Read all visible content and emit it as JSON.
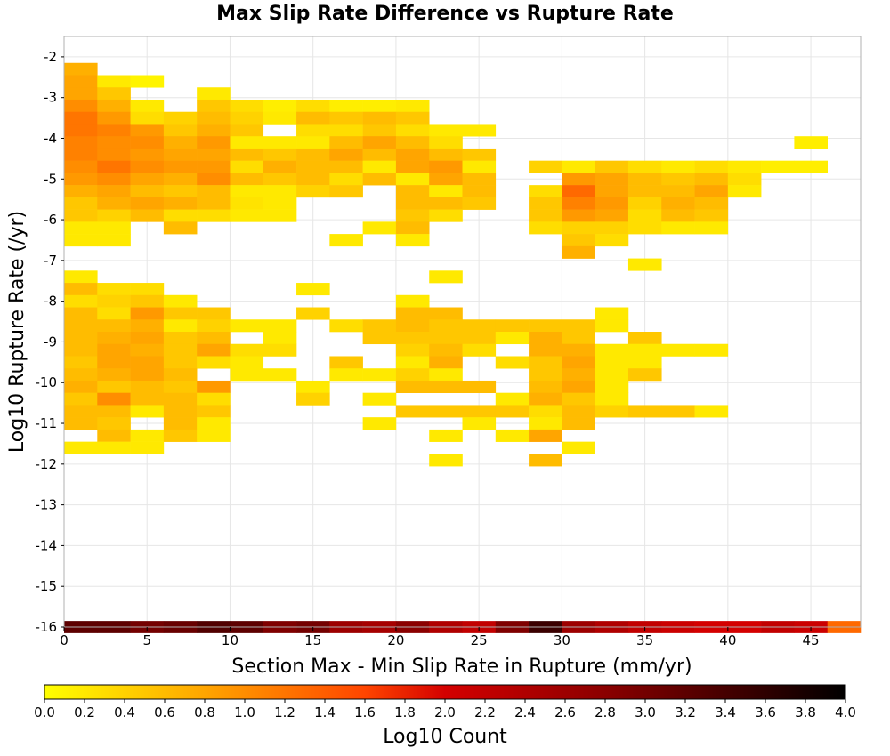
{
  "chart_data": {
    "type": "heatmap",
    "title": "Max Slip Rate Difference vs Rupture Rate",
    "xlabel": "Section Max - Min Slip Rate in Rupture (mm/yr)",
    "ylabel": "Log10 Rupture Rate (/yr)",
    "xlim": [
      0,
      48
    ],
    "ylim": [
      -16,
      -1.5
    ],
    "xticks": [
      0,
      5,
      10,
      15,
      20,
      25,
      30,
      35,
      40,
      45
    ],
    "yticks": [
      -2,
      -3,
      -4,
      -5,
      -6,
      -7,
      -8,
      -9,
      -10,
      -11,
      -12,
      -13,
      -14,
      -15,
      -16
    ],
    "x_bin_width": 2,
    "y_bin_height": 0.3,
    "grid": true,
    "colorbar": {
      "label": "Log10 Count",
      "range": [
        0.0,
        4.0
      ],
      "ticks": [
        "0.0",
        "0.2",
        "0.4",
        "0.6",
        "0.8",
        "1.0",
        "1.2",
        "1.4",
        "1.6",
        "1.8",
        "2.0",
        "2.2",
        "2.4",
        "2.6",
        "2.8",
        "3.0",
        "3.2",
        "3.4",
        "3.6",
        "3.8",
        "4.0"
      ],
      "colors": [
        "#ffff00",
        "#ffa500",
        "#ff4500",
        "#d40000",
        "#8b0000",
        "#000000"
      ]
    },
    "cells": [
      [
        0,
        -2.3,
        0.7
      ],
      [
        0,
        -2.6,
        0.8
      ],
      [
        2,
        -2.6,
        0.2
      ],
      [
        4,
        -2.6,
        0.1
      ],
      [
        0,
        -2.9,
        0.8
      ],
      [
        2,
        -2.9,
        0.5
      ],
      [
        8,
        -2.9,
        0.2
      ],
      [
        0,
        -3.2,
        1.0
      ],
      [
        2,
        -3.2,
        0.7
      ],
      [
        4,
        -3.2,
        0.2
      ],
      [
        8,
        -3.2,
        0.5
      ],
      [
        10,
        -3.2,
        0.3
      ],
      [
        12,
        -3.2,
        0.15
      ],
      [
        14,
        -3.2,
        0.3
      ],
      [
        16,
        -3.2,
        0.15
      ],
      [
        18,
        -3.2,
        0.15
      ],
      [
        20,
        -3.2,
        0.2
      ],
      [
        0,
        -3.5,
        1.2
      ],
      [
        2,
        -3.5,
        0.9
      ],
      [
        4,
        -3.5,
        0.3
      ],
      [
        6,
        -3.5,
        0.4
      ],
      [
        8,
        -3.5,
        0.6
      ],
      [
        10,
        -3.5,
        0.4
      ],
      [
        12,
        -3.5,
        0.2
      ],
      [
        14,
        -3.5,
        0.6
      ],
      [
        16,
        -3.5,
        0.5
      ],
      [
        18,
        -3.5,
        0.6
      ],
      [
        20,
        -3.5,
        0.5
      ],
      [
        0,
        -3.8,
        1.2
      ],
      [
        2,
        -3.8,
        1.1
      ],
      [
        4,
        -3.8,
        0.9
      ],
      [
        6,
        -3.8,
        0.5
      ],
      [
        8,
        -3.8,
        0.7
      ],
      [
        10,
        -3.8,
        0.5
      ],
      [
        14,
        -3.8,
        0.3
      ],
      [
        16,
        -3.8,
        0.3
      ],
      [
        18,
        -3.8,
        0.5
      ],
      [
        20,
        -3.8,
        0.3
      ],
      [
        22,
        -3.8,
        0.2
      ],
      [
        24,
        -3.8,
        0.2
      ],
      [
        0,
        -4.1,
        1.1
      ],
      [
        2,
        -4.1,
        1.0
      ],
      [
        4,
        -4.1,
        1.0
      ],
      [
        6,
        -4.1,
        0.7
      ],
      [
        8,
        -4.1,
        0.9
      ],
      [
        10,
        -4.1,
        0.2
      ],
      [
        12,
        -4.1,
        0.2
      ],
      [
        14,
        -4.1,
        0.2
      ],
      [
        16,
        -4.1,
        0.6
      ],
      [
        18,
        -4.1,
        0.8
      ],
      [
        20,
        -4.1,
        0.6
      ],
      [
        22,
        -4.1,
        0.3
      ],
      [
        44,
        -4.1,
        0.15
      ],
      [
        0,
        -4.4,
        1.1
      ],
      [
        2,
        -4.4,
        1.0
      ],
      [
        4,
        -4.4,
        0.9
      ],
      [
        6,
        -4.4,
        0.8
      ],
      [
        8,
        -4.4,
        0.8
      ],
      [
        10,
        -4.4,
        0.6
      ],
      [
        12,
        -4.4,
        0.5
      ],
      [
        14,
        -4.4,
        0.6
      ],
      [
        16,
        -4.4,
        0.8
      ],
      [
        18,
        -4.4,
        0.6
      ],
      [
        20,
        -4.4,
        0.8
      ],
      [
        22,
        -4.4,
        0.6
      ],
      [
        24,
        -4.4,
        0.5
      ],
      [
        0,
        -4.7,
        1.0
      ],
      [
        2,
        -4.7,
        1.2
      ],
      [
        4,
        -4.7,
        1.0
      ],
      [
        6,
        -4.7,
        0.9
      ],
      [
        8,
        -4.7,
        0.9
      ],
      [
        10,
        -4.7,
        0.3
      ],
      [
        12,
        -4.7,
        0.7
      ],
      [
        14,
        -4.7,
        0.6
      ],
      [
        16,
        -4.7,
        0.6
      ],
      [
        18,
        -4.7,
        0.2
      ],
      [
        20,
        -4.7,
        0.8
      ],
      [
        22,
        -4.7,
        0.9
      ],
      [
        24,
        -4.7,
        0.2
      ],
      [
        28,
        -4.7,
        0.4
      ],
      [
        30,
        -4.7,
        0.2
      ],
      [
        32,
        -4.7,
        0.5
      ],
      [
        34,
        -4.7,
        0.3
      ],
      [
        36,
        -4.7,
        0.2
      ],
      [
        38,
        -4.7,
        0.3
      ],
      [
        40,
        -4.7,
        0.2
      ],
      [
        42,
        -4.7,
        0.15
      ],
      [
        44,
        -4.7,
        0.15
      ],
      [
        0,
        -5.0,
        0.9
      ],
      [
        2,
        -5.0,
        1.0
      ],
      [
        4,
        -5.0,
        0.8
      ],
      [
        6,
        -5.0,
        0.7
      ],
      [
        8,
        -5.0,
        1.0
      ],
      [
        10,
        -5.0,
        0.6
      ],
      [
        12,
        -5.0,
        0.5
      ],
      [
        14,
        -5.0,
        0.6
      ],
      [
        16,
        -5.0,
        0.3
      ],
      [
        18,
        -5.0,
        0.6
      ],
      [
        20,
        -5.0,
        0.2
      ],
      [
        22,
        -5.0,
        0.8
      ],
      [
        24,
        -5.0,
        0.6
      ],
      [
        30,
        -5.0,
        0.9
      ],
      [
        32,
        -5.0,
        0.8
      ],
      [
        34,
        -5.0,
        0.6
      ],
      [
        36,
        -5.0,
        0.5
      ],
      [
        38,
        -5.0,
        0.6
      ],
      [
        40,
        -5.0,
        0.3
      ],
      [
        0,
        -5.3,
        0.7
      ],
      [
        2,
        -5.3,
        0.8
      ],
      [
        4,
        -5.3,
        0.6
      ],
      [
        6,
        -5.3,
        0.5
      ],
      [
        8,
        -5.3,
        0.6
      ],
      [
        10,
        -5.3,
        0.2
      ],
      [
        12,
        -5.3,
        0.2
      ],
      [
        14,
        -5.3,
        0.4
      ],
      [
        16,
        -5.3,
        0.5
      ],
      [
        20,
        -5.3,
        0.6
      ],
      [
        22,
        -5.3,
        0.2
      ],
      [
        24,
        -5.3,
        0.6
      ],
      [
        28,
        -5.3,
        0.3
      ],
      [
        30,
        -5.3,
        1.3
      ],
      [
        32,
        -5.3,
        0.8
      ],
      [
        34,
        -5.3,
        0.6
      ],
      [
        36,
        -5.3,
        0.6
      ],
      [
        38,
        -5.3,
        0.8
      ],
      [
        40,
        -5.3,
        0.2
      ],
      [
        0,
        -5.6,
        0.5
      ],
      [
        2,
        -5.6,
        0.7
      ],
      [
        4,
        -5.6,
        0.8
      ],
      [
        6,
        -5.6,
        0.7
      ],
      [
        8,
        -5.6,
        0.6
      ],
      [
        10,
        -5.6,
        0.25
      ],
      [
        12,
        -5.6,
        0.2
      ],
      [
        20,
        -5.6,
        0.6
      ],
      [
        22,
        -5.6,
        0.6
      ],
      [
        24,
        -5.6,
        0.5
      ],
      [
        28,
        -5.6,
        0.5
      ],
      [
        30,
        -5.6,
        1.1
      ],
      [
        32,
        -5.6,
        0.9
      ],
      [
        34,
        -5.6,
        0.4
      ],
      [
        36,
        -5.6,
        0.7
      ],
      [
        38,
        -5.6,
        0.6
      ],
      [
        0,
        -5.9,
        0.5
      ],
      [
        2,
        -5.9,
        0.4
      ],
      [
        4,
        -5.9,
        0.6
      ],
      [
        6,
        -5.9,
        0.3
      ],
      [
        8,
        -5.9,
        0.3
      ],
      [
        10,
        -5.9,
        0.2
      ],
      [
        12,
        -5.9,
        0.2
      ],
      [
        20,
        -5.9,
        0.5
      ],
      [
        22,
        -5.9,
        0.3
      ],
      [
        28,
        -5.9,
        0.5
      ],
      [
        30,
        -5.9,
        0.9
      ],
      [
        32,
        -5.9,
        0.8
      ],
      [
        34,
        -5.9,
        0.3
      ],
      [
        36,
        -5.9,
        0.6
      ],
      [
        38,
        -5.9,
        0.5
      ],
      [
        0,
        -6.2,
        0.2
      ],
      [
        2,
        -6.2,
        0.2
      ],
      [
        6,
        -6.2,
        0.6
      ],
      [
        18,
        -6.2,
        0.2
      ],
      [
        20,
        -6.2,
        0.6
      ],
      [
        28,
        -6.2,
        0.3
      ],
      [
        30,
        -6.2,
        0.4
      ],
      [
        32,
        -6.2,
        0.4
      ],
      [
        34,
        -6.2,
        0.3
      ],
      [
        36,
        -6.2,
        0.2
      ],
      [
        38,
        -6.2,
        0.2
      ],
      [
        0,
        -6.5,
        0.2
      ],
      [
        2,
        -6.5,
        0.2
      ],
      [
        16,
        -6.5,
        0.2
      ],
      [
        20,
        -6.5,
        0.2
      ],
      [
        30,
        -6.5,
        0.5
      ],
      [
        32,
        -6.5,
        0.3
      ],
      [
        30,
        -6.8,
        0.7
      ],
      [
        34,
        -7.1,
        0.2
      ],
      [
        0,
        -7.4,
        0.2
      ],
      [
        22,
        -7.4,
        0.2
      ],
      [
        0,
        -7.7,
        0.6
      ],
      [
        2,
        -7.7,
        0.3
      ],
      [
        4,
        -7.7,
        0.3
      ],
      [
        14,
        -7.7,
        0.2
      ],
      [
        0,
        -8.0,
        0.3
      ],
      [
        2,
        -8.0,
        0.4
      ],
      [
        4,
        -8.0,
        0.5
      ],
      [
        6,
        -8.0,
        0.2
      ],
      [
        20,
        -8.0,
        0.2
      ],
      [
        0,
        -8.3,
        0.6
      ],
      [
        2,
        -8.3,
        0.3
      ],
      [
        4,
        -8.3,
        0.9
      ],
      [
        6,
        -8.3,
        0.5
      ],
      [
        8,
        -8.3,
        0.5
      ],
      [
        14,
        -8.3,
        0.4
      ],
      [
        20,
        -8.3,
        0.6
      ],
      [
        22,
        -8.3,
        0.6
      ],
      [
        32,
        -8.3,
        0.2
      ],
      [
        0,
        -8.6,
        0.6
      ],
      [
        2,
        -8.6,
        0.6
      ],
      [
        4,
        -8.6,
        0.7
      ],
      [
        6,
        -8.6,
        0.2
      ],
      [
        8,
        -8.6,
        0.4
      ],
      [
        10,
        -8.6,
        0.2
      ],
      [
        12,
        -8.6,
        0.2
      ],
      [
        16,
        -8.6,
        0.3
      ],
      [
        18,
        -8.6,
        0.5
      ],
      [
        20,
        -8.6,
        0.6
      ],
      [
        22,
        -8.6,
        0.5
      ],
      [
        24,
        -8.6,
        0.5
      ],
      [
        26,
        -8.6,
        0.5
      ],
      [
        28,
        -8.6,
        0.5
      ],
      [
        30,
        -8.6,
        0.5
      ],
      [
        32,
        -8.6,
        0.2
      ],
      [
        0,
        -8.9,
        0.6
      ],
      [
        2,
        -8.9,
        0.7
      ],
      [
        4,
        -8.9,
        0.8
      ],
      [
        6,
        -8.9,
        0.5
      ],
      [
        8,
        -8.9,
        0.6
      ],
      [
        12,
        -8.9,
        0.2
      ],
      [
        18,
        -8.9,
        0.5
      ],
      [
        20,
        -8.9,
        0.5
      ],
      [
        22,
        -8.9,
        0.5
      ],
      [
        24,
        -8.9,
        0.5
      ],
      [
        26,
        -8.9,
        0.2
      ],
      [
        28,
        -8.9,
        0.7
      ],
      [
        30,
        -8.9,
        0.5
      ],
      [
        34,
        -8.9,
        0.5
      ],
      [
        0,
        -9.2,
        0.6
      ],
      [
        2,
        -9.2,
        0.8
      ],
      [
        4,
        -9.2,
        0.7
      ],
      [
        6,
        -9.2,
        0.5
      ],
      [
        8,
        -9.2,
        0.8
      ],
      [
        10,
        -9.2,
        0.3
      ],
      [
        12,
        -9.2,
        0.3
      ],
      [
        20,
        -9.2,
        0.4
      ],
      [
        22,
        -9.2,
        0.6
      ],
      [
        24,
        -9.2,
        0.3
      ],
      [
        28,
        -9.2,
        0.7
      ],
      [
        30,
        -9.2,
        0.7
      ],
      [
        32,
        -9.2,
        0.2
      ],
      [
        34,
        -9.2,
        0.2
      ],
      [
        36,
        -9.2,
        0.2
      ],
      [
        38,
        -9.2,
        0.2
      ],
      [
        0,
        -9.5,
        0.5
      ],
      [
        2,
        -9.5,
        0.8
      ],
      [
        4,
        -9.5,
        0.8
      ],
      [
        6,
        -9.5,
        0.5
      ],
      [
        8,
        -9.5,
        0.3
      ],
      [
        10,
        -9.5,
        0.2
      ],
      [
        16,
        -9.5,
        0.5
      ],
      [
        20,
        -9.5,
        0.2
      ],
      [
        22,
        -9.5,
        0.7
      ],
      [
        26,
        -9.5,
        0.3
      ],
      [
        28,
        -9.5,
        0.5
      ],
      [
        30,
        -9.5,
        0.8
      ],
      [
        32,
        -9.5,
        0.2
      ],
      [
        34,
        -9.5,
        0.2
      ],
      [
        0,
        -9.8,
        0.6
      ],
      [
        2,
        -9.8,
        0.7
      ],
      [
        4,
        -9.8,
        0.8
      ],
      [
        6,
        -9.8,
        0.6
      ],
      [
        10,
        -9.8,
        0.2
      ],
      [
        12,
        -9.8,
        0.2
      ],
      [
        16,
        -9.8,
        0.2
      ],
      [
        18,
        -9.8,
        0.2
      ],
      [
        20,
        -9.8,
        0.4
      ],
      [
        22,
        -9.8,
        0.2
      ],
      [
        28,
        -9.8,
        0.5
      ],
      [
        30,
        -9.8,
        0.7
      ],
      [
        32,
        -9.8,
        0.2
      ],
      [
        34,
        -9.8,
        0.5
      ],
      [
        0,
        -10.1,
        0.7
      ],
      [
        2,
        -10.1,
        0.5
      ],
      [
        4,
        -10.1,
        0.6
      ],
      [
        6,
        -10.1,
        0.5
      ],
      [
        8,
        -10.1,
        0.9
      ],
      [
        14,
        -10.1,
        0.2
      ],
      [
        20,
        -10.1,
        0.6
      ],
      [
        22,
        -10.1,
        0.6
      ],
      [
        24,
        -10.1,
        0.6
      ],
      [
        28,
        -10.1,
        0.6
      ],
      [
        30,
        -10.1,
        0.8
      ],
      [
        32,
        -10.1,
        0.2
      ],
      [
        0,
        -10.4,
        0.5
      ],
      [
        2,
        -10.4,
        1.0
      ],
      [
        4,
        -10.4,
        0.6
      ],
      [
        6,
        -10.4,
        0.6
      ],
      [
        8,
        -10.4,
        0.3
      ],
      [
        14,
        -10.4,
        0.4
      ],
      [
        18,
        -10.4,
        0.2
      ],
      [
        26,
        -10.4,
        0.2
      ],
      [
        28,
        -10.4,
        0.7
      ],
      [
        30,
        -10.4,
        0.5
      ],
      [
        32,
        -10.4,
        0.2
      ],
      [
        0,
        -10.7,
        0.6
      ],
      [
        2,
        -10.7,
        0.6
      ],
      [
        4,
        -10.7,
        0.2
      ],
      [
        6,
        -10.7,
        0.6
      ],
      [
        8,
        -10.7,
        0.5
      ],
      [
        20,
        -10.7,
        0.5
      ],
      [
        22,
        -10.7,
        0.5
      ],
      [
        24,
        -10.7,
        0.5
      ],
      [
        26,
        -10.7,
        0.5
      ],
      [
        28,
        -10.7,
        0.3
      ],
      [
        30,
        -10.7,
        0.6
      ],
      [
        32,
        -10.7,
        0.4
      ],
      [
        34,
        -10.7,
        0.5
      ],
      [
        36,
        -10.7,
        0.5
      ],
      [
        38,
        -10.7,
        0.2
      ],
      [
        0,
        -11.0,
        0.6
      ],
      [
        2,
        -11.0,
        0.5
      ],
      [
        6,
        -11.0,
        0.6
      ],
      [
        8,
        -11.0,
        0.2
      ],
      [
        18,
        -11.0,
        0.2
      ],
      [
        24,
        -11.0,
        0.2
      ],
      [
        28,
        -11.0,
        0.2
      ],
      [
        30,
        -11.0,
        0.6
      ],
      [
        2,
        -11.3,
        0.6
      ],
      [
        4,
        -11.3,
        0.2
      ],
      [
        6,
        -11.3,
        0.5
      ],
      [
        8,
        -11.3,
        0.2
      ],
      [
        22,
        -11.3,
        0.2
      ],
      [
        26,
        -11.3,
        0.2
      ],
      [
        28,
        -11.3,
        0.8
      ],
      [
        0,
        -11.6,
        0.2
      ],
      [
        2,
        -11.6,
        0.2
      ],
      [
        4,
        -11.6,
        0.2
      ],
      [
        30,
        -11.6,
        0.2
      ],
      [
        22,
        -11.9,
        0.2
      ],
      [
        28,
        -11.9,
        0.6
      ]
    ],
    "bottom_row": [
      3.2,
      3.2,
      3.0,
      3.1,
      3.3,
      3.2,
      2.9,
      3.0,
      2.6,
      2.5,
      2.8,
      2.4,
      2.2,
      2.9,
      3.5,
      2.6,
      2.4,
      2.2,
      2.1,
      2.0,
      2.0,
      2.2,
      2.1,
      1.3
    ]
  }
}
